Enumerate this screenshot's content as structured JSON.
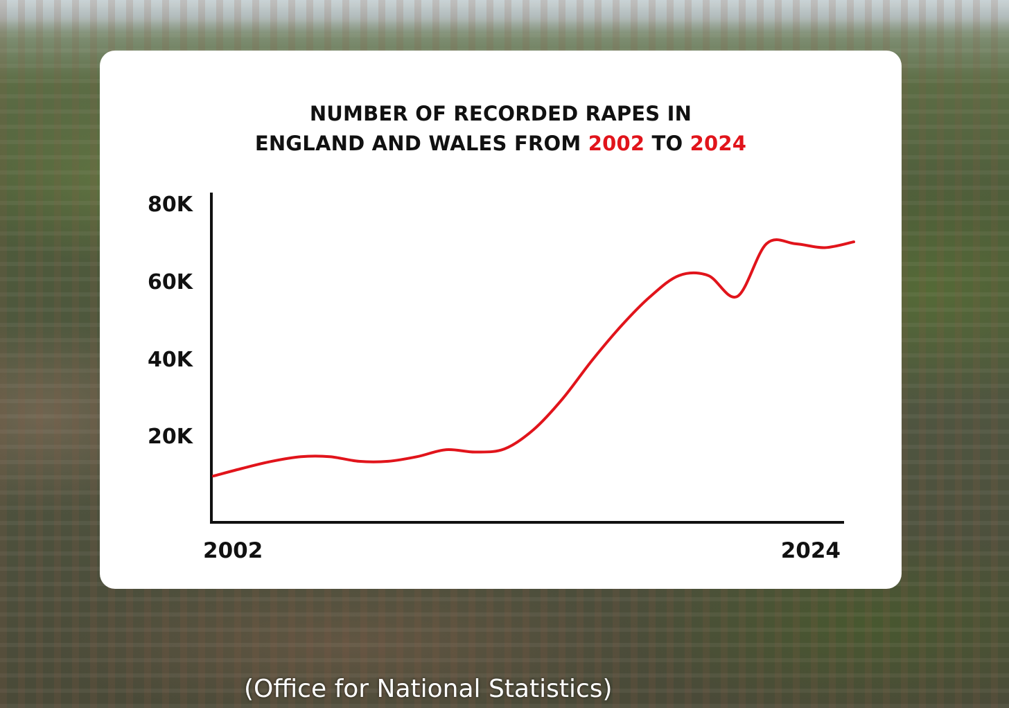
{
  "title": {
    "line1": "NUMBER OF RECORDED RAPES IN",
    "line2_prefix": "ENGLAND AND WALES FROM ",
    "start_year": "2002",
    "connector": " TO ",
    "end_year": "2024"
  },
  "caption": "(Office for National Statistics)",
  "colors": {
    "line": "#e1141b",
    "highlight": "#e1141b",
    "axis": "#111111",
    "card": "#ffffff"
  },
  "chart_data": {
    "type": "line",
    "title": "NUMBER OF RECORDED RAPES IN ENGLAND AND WALES FROM 2002 TO 2024",
    "xlabel": "",
    "ylabel": "",
    "x_tick_labels": [
      "2002",
      "2024"
    ],
    "y_tick_labels": [
      "20K",
      "40K",
      "60K",
      "80K"
    ],
    "y_tick_values": [
      20000,
      40000,
      60000,
      80000
    ],
    "xlim": [
      2002,
      2024
    ],
    "ylim": [
      0,
      80000
    ],
    "grid": false,
    "legend": "none",
    "series": [
      {
        "x": [
          2002,
          2003,
          2004,
          2005,
          2006,
          2007,
          2008,
          2009,
          2010,
          2011,
          2012,
          2013,
          2014,
          2015,
          2016,
          2017,
          2018,
          2019,
          2020,
          2021,
          2022,
          2023,
          2024
        ],
        "values": [
          10000,
          12000,
          13800,
          15000,
          15000,
          13800,
          13800,
          15000,
          16800,
          16200,
          17000,
          22000,
          30000,
          39800,
          48700,
          56300,
          61800,
          61800,
          56400,
          70000,
          70000,
          69000,
          70500
        ]
      }
    ]
  }
}
